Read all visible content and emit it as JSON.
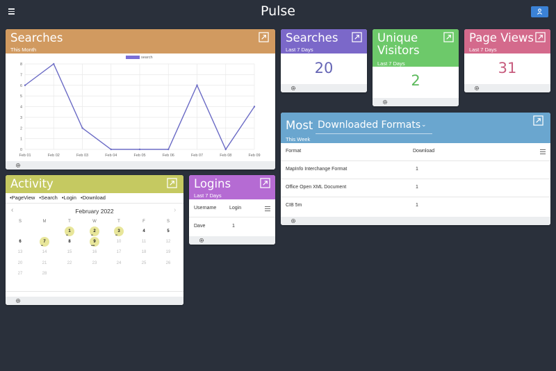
{
  "app": {
    "title": "Pulse"
  },
  "searches_chart": {
    "title": "Searches",
    "subtitle": "This Month",
    "header_color": "#d19a60",
    "legend": "search"
  },
  "chart_data": {
    "type": "line",
    "categories": [
      "Feb 01",
      "Feb 02",
      "Feb 03",
      "Feb 04",
      "Feb 05",
      "Feb 06",
      "Feb 07",
      "Feb 08",
      "Feb 09"
    ],
    "series": [
      {
        "name": "search",
        "values": [
          6,
          8,
          2,
          0,
          0,
          0,
          6,
          0,
          4
        ],
        "color": "#6b6bc5"
      }
    ],
    "y_ticks": [
      "0",
      "1",
      "2",
      "3",
      "4",
      "5",
      "6",
      "7",
      "8"
    ],
    "ylim": [
      0,
      8
    ],
    "grid": true,
    "legend_position": "top-center"
  },
  "stats": {
    "searches": {
      "title": "Searches",
      "subtitle": "Last 7 Days",
      "value": "20",
      "color": "#7b68c9",
      "value_color": "#6565b5"
    },
    "unique_visitors": {
      "title": "Unique Visitors",
      "subtitle": "Last 7 Days",
      "value": "2",
      "color": "#6dc96a",
      "value_color": "#5cba5c"
    },
    "page_views": {
      "title": "Page Views",
      "subtitle": "Last 7 Days",
      "value": "31",
      "color": "#d46a8c",
      "value_color": "#c75c7e"
    }
  },
  "most": {
    "title": "Most",
    "selected": "Downloaded Formats",
    "subtitle": "This Week",
    "color": "#6aa6cf",
    "columns": [
      "Format",
      "Download"
    ],
    "rows": [
      {
        "format": "MapInfo Interchange Format",
        "download": "1"
      },
      {
        "format": "Office Open XML Document",
        "download": "1"
      },
      {
        "format": "CIB 5m",
        "download": "1"
      }
    ]
  },
  "activity": {
    "title": "Activity",
    "color": "#c5c961",
    "legend": [
      "PageView",
      "Search",
      "Login",
      "Download"
    ],
    "calendar": {
      "month": "February 2022",
      "prev": "‹",
      "next": "›",
      "weekdays": [
        "S",
        "M",
        "T",
        "W",
        "T",
        "F",
        "S"
      ],
      "weeks": [
        [
          "30",
          "31",
          "1",
          "2",
          "3",
          "4",
          "5"
        ],
        [
          "6",
          "7",
          "8",
          "9",
          "10",
          "11",
          "12"
        ],
        [
          "13",
          "14",
          "15",
          "16",
          "17",
          "18",
          "19"
        ],
        [
          "20",
          "21",
          "22",
          "23",
          "24",
          "25",
          "26"
        ],
        [
          "27",
          "28",
          "",
          "",
          "",
          "",
          ""
        ]
      ]
    }
  },
  "logins": {
    "title": "Logins",
    "subtitle": "Last 7 Days",
    "color": "#b56bd3",
    "columns": [
      "Username",
      "Login"
    ],
    "rows": [
      {
        "username": "Dave",
        "login": "1"
      }
    ]
  }
}
